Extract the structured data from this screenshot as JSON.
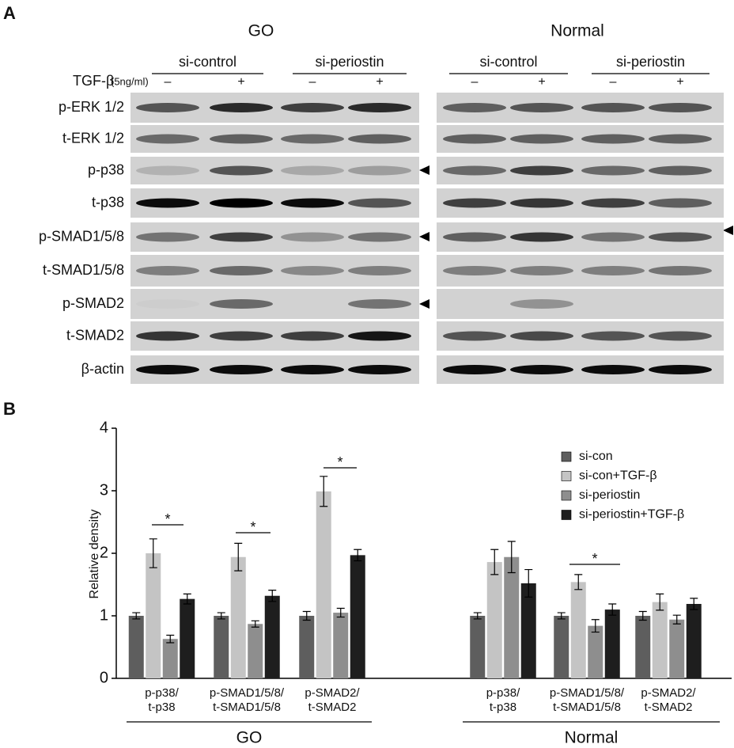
{
  "panel_a": {
    "label": "A",
    "treatment": "TGF-β",
    "dose": "(5ng/ml)",
    "blots": [
      {
        "title": "GO",
        "conditions": [
          "si-control",
          "si-periostin"
        ],
        "lanes": [
          "–",
          "+",
          "–",
          "+"
        ]
      },
      {
        "title": "Normal",
        "conditions": [
          "si-control",
          "si-periostin"
        ],
        "lanes": [
          "–",
          "+",
          "–",
          "+"
        ]
      }
    ],
    "rows": [
      "p-ERK 1/2",
      "t-ERK 1/2",
      "p-p38",
      "t-p38",
      "p-SMAD1/5/8",
      "t-SMAD1/5/8",
      "p-SMAD2",
      "t-SMAD2",
      "β-actin"
    ]
  },
  "chart_data": {
    "type": "bar",
    "panel_label": "B",
    "y_label": "Relative density",
    "categories": [
      [
        "p-p38/",
        "t-p38"
      ],
      [
        "p-SMAD1/5/8/",
        "t-SMAD1/5/8"
      ],
      [
        "p-SMAD2/",
        "t-SMAD2"
      ],
      [
        "p-p38/",
        "t-p38"
      ],
      [
        "p-SMAD1/5/8/",
        "t-SMAD1/5/8"
      ],
      [
        "p-SMAD2/",
        "t-SMAD2"
      ]
    ],
    "groups": [
      "GO",
      "Normal"
    ],
    "series": [
      {
        "name": "si-con",
        "color": "#5e5e5e",
        "values": [
          1.0,
          1.0,
          1.0,
          1.0,
          1.0,
          1.0
        ],
        "errors": [
          0.05,
          0.05,
          0.07,
          0.05,
          0.05,
          0.07
        ]
      },
      {
        "name": "si-con+TGF-β",
        "color": "#c4c4c4",
        "values": [
          2.0,
          1.94,
          2.99,
          1.86,
          1.54,
          1.22
        ],
        "errors": [
          0.23,
          0.22,
          0.24,
          0.2,
          0.12,
          0.13
        ]
      },
      {
        "name": "si-periostin",
        "color": "#8e8e8e",
        "values": [
          0.63,
          0.87,
          1.05,
          1.94,
          0.84,
          0.94
        ],
        "errors": [
          0.06,
          0.05,
          0.07,
          0.25,
          0.1,
          0.07
        ]
      },
      {
        "name": "si-periostin+TGF-β",
        "color": "#1e1e1e",
        "values": [
          1.27,
          1.32,
          1.97,
          1.52,
          1.1,
          1.19
        ],
        "errors": [
          0.08,
          0.09,
          0.09,
          0.22,
          0.09,
          0.09
        ]
      }
    ],
    "annotations": [
      "*",
      "*",
      "*",
      "*"
    ],
    "ylim": [
      0,
      4
    ],
    "yticks": [
      0,
      1,
      2,
      3,
      4
    ],
    "grid": false,
    "legend": "upper right"
  }
}
